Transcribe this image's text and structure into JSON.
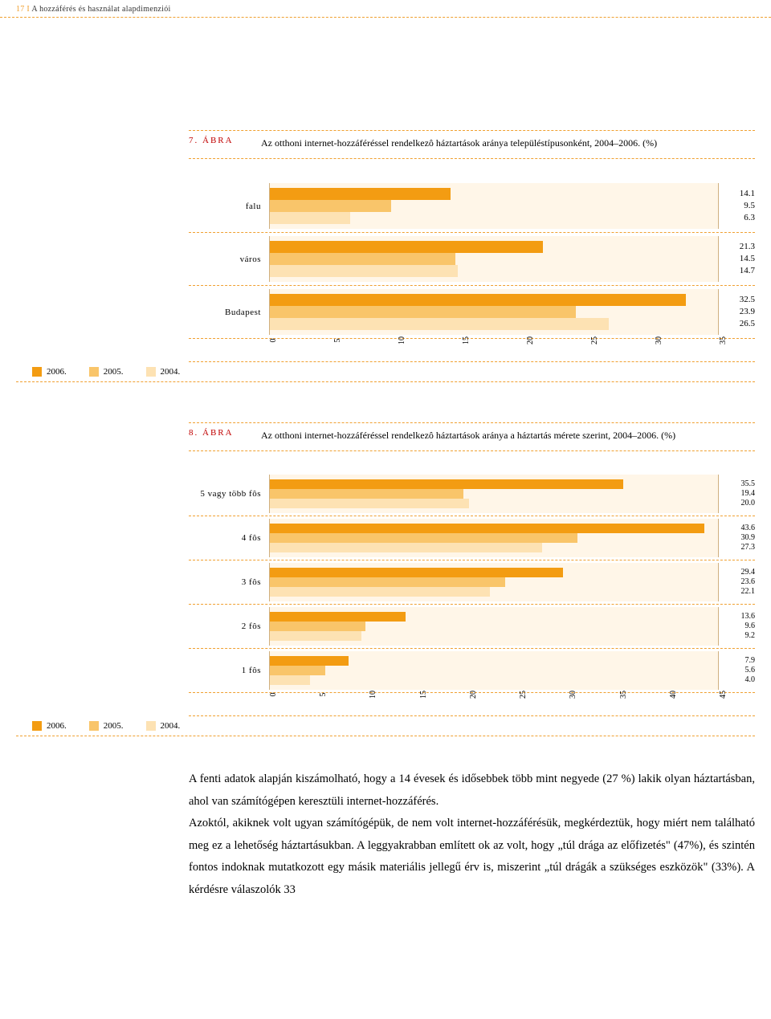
{
  "header": {
    "page_number": "17",
    "separator": "I",
    "section_title": "A hozzáférés és használat alapdimenziói"
  },
  "legend": {
    "items": [
      {
        "label": "2006.",
        "color": "#f39c12"
      },
      {
        "label": "2005.",
        "color": "#f9c56a"
      },
      {
        "label": "2004.",
        "color": "#fde2b3"
      }
    ]
  },
  "figure7": {
    "num": "7. ábra",
    "caption": "Az otthoni internet-hozzáféréssel rendelkezô háztartások aránya településtípusonként, 2004–2006. (%)",
    "xmax": 35,
    "xtick_step": 5,
    "series_colors": [
      "#f39c12",
      "#f9c56a",
      "#fde2b3"
    ],
    "categories": [
      {
        "label": "falu",
        "values": [
          14.1,
          9.5,
          6.3
        ]
      },
      {
        "label": "város",
        "values": [
          21.3,
          14.5,
          14.7
        ]
      },
      {
        "label": "Budapest",
        "values": [
          32.5,
          23.9,
          26.5
        ]
      }
    ]
  },
  "figure8": {
    "num": "8. ábra",
    "caption": "Az otthoni internet-hozzáféréssel rendelkezô háztartások aránya a háztartás mérete szerint, 2004–2006. (%)",
    "xmax": 45,
    "xtick_step": 5,
    "series_colors": [
      "#f39c12",
      "#f9c56a",
      "#fde2b3"
    ],
    "categories": [
      {
        "label": "5 vagy több fôs",
        "values": [
          35.5,
          19.4,
          20.0
        ]
      },
      {
        "label": "4 fôs",
        "values": [
          43.6,
          30.9,
          27.3
        ]
      },
      {
        "label": "3 fôs",
        "values": [
          29.4,
          23.6,
          22.1
        ]
      },
      {
        "label": "2 fôs",
        "values": [
          13.6,
          9.6,
          9.2
        ]
      },
      {
        "label": "1 fôs",
        "values": [
          7.9,
          5.6,
          4.0
        ]
      }
    ]
  },
  "body": {
    "p1": "A fenti adatok alapján kiszámolható, hogy a 14 évesek és idősebbek több mint negyede (27 %) lakik olyan háztartásban, ahol van számítógépen keresztüli internet-hozzáférés.",
    "p2": "Azoktól, akiknek volt ugyan számítógépük, de nem volt internet-hozzáférésük, megkérdeztük, hogy miért nem található meg ez a lehetőség háztartásukban. A leggyakrabban említett ok az volt, hogy „túl drága az előfizetés\" (47%), és szintén fontos indoknak mutatkozott egy másik materiális jellegű érv is, miszerint „túl drágák a szükséges eszközök\" (33%).  A kérdésre válaszolók 33"
  },
  "styling": {
    "accent_color": "#f0a030",
    "chart_bg": "#fff6e8",
    "text_color": "#000000",
    "figure_num_color": "#c00000"
  }
}
